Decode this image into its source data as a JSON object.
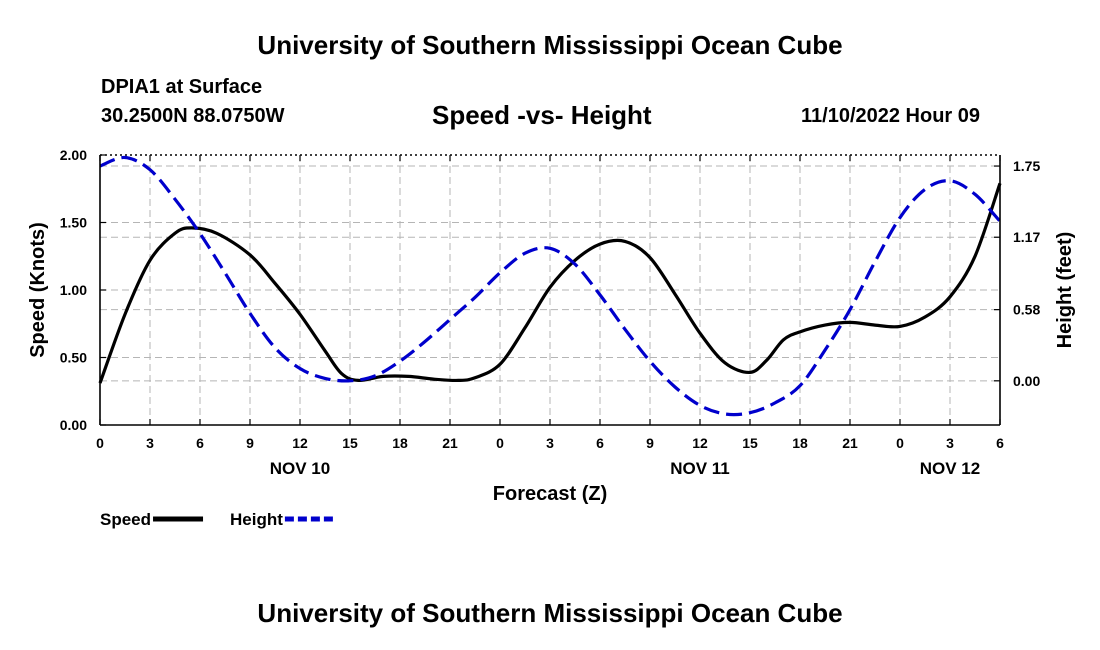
{
  "header": {
    "main_title": "University of Southern Mississippi Ocean Cube",
    "station": "DPIA1 at Surface",
    "coordinates": "30.2500N  88.0750W",
    "chart_title": "Speed -vs- Height",
    "date_hour": "11/10/2022 Hour 09"
  },
  "footer": {
    "title": "University of Southern Mississippi Ocean Cube"
  },
  "chart_data": {
    "type": "line",
    "title": "Speed -vs- Height",
    "xlabel": "Forecast (Z)",
    "ylabel": "Speed (Knots)",
    "y2label": "Height (feet)",
    "xlim": [
      0,
      54
    ],
    "ylim": [
      0,
      2.0
    ],
    "y2lim": [
      -0.36,
      1.84
    ],
    "x_ticks": [
      0,
      3,
      6,
      9,
      12,
      15,
      18,
      21,
      24,
      27,
      30,
      33,
      36,
      39,
      42,
      45,
      48,
      51,
      54
    ],
    "x_tick_labels": [
      "0",
      "3",
      "6",
      "9",
      "12",
      "15",
      "18",
      "21",
      "0",
      "3",
      "6",
      "9",
      "12",
      "15",
      "18",
      "21",
      "0",
      "3",
      "6"
    ],
    "day_labels": [
      {
        "x": 12,
        "label": "NOV 10"
      },
      {
        "x": 36,
        "label": "NOV 11"
      },
      {
        "x": 51,
        "label": "NOV 12"
      }
    ],
    "y_ticks": [
      0.0,
      0.5,
      1.0,
      1.5,
      2.0
    ],
    "y_tick_labels": [
      "0.00",
      "0.50",
      "1.00",
      "1.50",
      "2.00"
    ],
    "y2_ticks": [
      0.0,
      0.58,
      1.17,
      1.75
    ],
    "y2_tick_labels": [
      "0.00",
      "0.58",
      "1.17",
      "1.75"
    ],
    "grid": true,
    "series": [
      {
        "name": "Speed",
        "axis": "left",
        "color": "#000000",
        "dash": "solid",
        "x": [
          0,
          1.5,
          3,
          4.5,
          5.5,
          7,
          9,
          10.5,
          12,
          13.5,
          14.5,
          15.5,
          17,
          18.5,
          20,
          21.5,
          22.5,
          24,
          25.5,
          27,
          28.5,
          30,
          31.5,
          33,
          34.5,
          36,
          37.5,
          39,
          40,
          41,
          42,
          43.5,
          45,
          46.5,
          48,
          49.5,
          51,
          52.5,
          54
        ],
        "values": [
          0.31,
          0.82,
          1.22,
          1.42,
          1.46,
          1.42,
          1.26,
          1.05,
          0.82,
          0.55,
          0.38,
          0.33,
          0.36,
          0.36,
          0.34,
          0.33,
          0.35,
          0.45,
          0.72,
          1.02,
          1.22,
          1.34,
          1.36,
          1.24,
          0.97,
          0.68,
          0.46,
          0.39,
          0.48,
          0.63,
          0.69,
          0.74,
          0.76,
          0.74,
          0.73,
          0.8,
          0.95,
          1.25,
          1.79
        ]
      },
      {
        "name": "Height",
        "axis": "right",
        "color": "#0000cc",
        "dash": "dashed",
        "x": [
          0,
          1.5,
          3,
          4.5,
          6,
          7.5,
          9,
          10.5,
          12,
          13.5,
          15,
          16.5,
          18,
          19.5,
          21,
          22.5,
          24,
          25.5,
          27,
          28.5,
          30,
          31.5,
          33,
          34.5,
          36,
          37.5,
          39,
          40.5,
          42,
          43.5,
          45,
          46.5,
          48,
          49.5,
          51,
          52.5,
          54
        ],
        "values": [
          1.75,
          1.82,
          1.72,
          1.48,
          1.2,
          0.88,
          0.55,
          0.27,
          0.1,
          0.02,
          0.0,
          0.04,
          0.16,
          0.32,
          0.5,
          0.68,
          0.88,
          1.04,
          1.08,
          0.95,
          0.7,
          0.42,
          0.16,
          -0.05,
          -0.2,
          -0.27,
          -0.26,
          -0.18,
          -0.04,
          0.25,
          0.58,
          0.97,
          1.33,
          1.56,
          1.63,
          1.52,
          1.3
        ]
      }
    ],
    "legend": [
      {
        "label": "Speed",
        "color": "#000000",
        "dash": "solid"
      },
      {
        "label": "Height",
        "color": "#0000cc",
        "dash": "dashed"
      }
    ]
  }
}
